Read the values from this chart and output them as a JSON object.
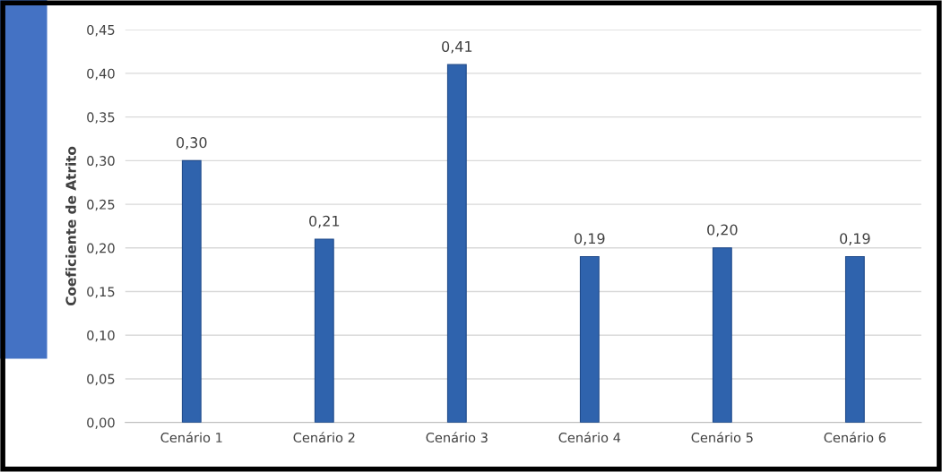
{
  "chart_data": {
    "type": "bar",
    "ylabel": "Coeficiente de Atrito",
    "categories": [
      "Cenário 1",
      "Cenário 2",
      "Cenário 3",
      "Cenário 4",
      "Cenário 5",
      "Cenário 6"
    ],
    "values": [
      0.3,
      0.21,
      0.41,
      0.19,
      0.2,
      0.19
    ],
    "value_labels": [
      "0,30",
      "0,21",
      "0,41",
      "0,19",
      "0,20",
      "0,19"
    ],
    "color": "#2f63ad",
    "ylim": [
      0,
      0.45
    ],
    "yticks": [
      {
        "value": 0,
        "label": "0,00"
      },
      {
        "value": 0.05,
        "label": "0,05"
      },
      {
        "value": 0.1,
        "label": "0,10"
      },
      {
        "value": 0.15,
        "label": "0,15"
      },
      {
        "value": 0.2,
        "label": "0,20"
      },
      {
        "value": 0.25,
        "label": "0,25"
      },
      {
        "value": 0.3,
        "label": "0,30"
      },
      {
        "value": 0.35,
        "label": "0,35"
      },
      {
        "value": 0.4,
        "label": "0,40"
      },
      {
        "value": 0.45,
        "label": "0,45"
      }
    ],
    "grid": "y",
    "legend": false
  }
}
